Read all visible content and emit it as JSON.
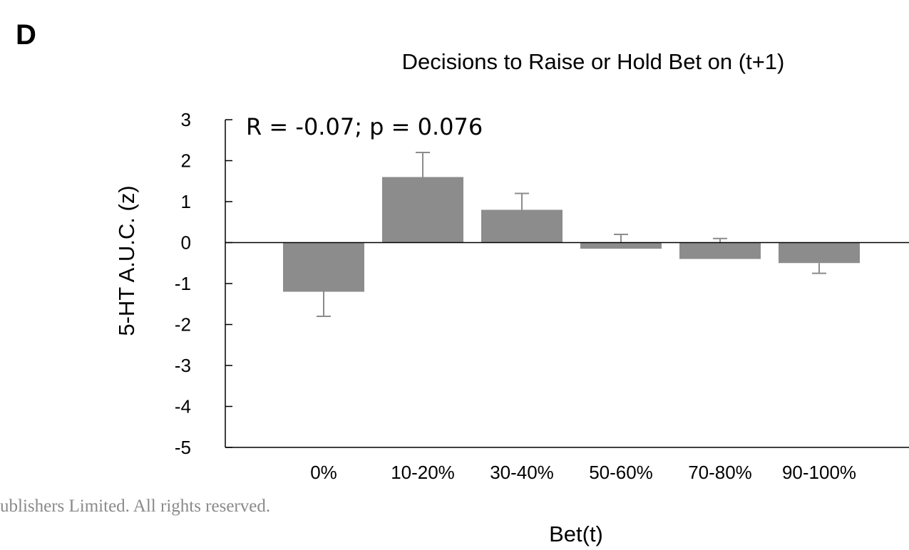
{
  "panel_label": "D",
  "copyright": "ublishers Limited. All rights reserved.",
  "colors": {
    "bar": "#8c8c8c",
    "axis": "#000000",
    "error_bar": "#8c8c8c",
    "copyright": "#8a8a8a"
  },
  "chart_data": {
    "type": "bar",
    "title": "Decisions to Raise or Hold Bet on (t+1)",
    "annotation": "R = -0.07; p = 0.076",
    "xlabel": "Bet(t)",
    "ylabel": "5-HT  A.U.C. (z)",
    "categories": [
      "0%",
      "10-20%",
      "30-40%",
      "50-60%",
      "70-80%",
      "90-100%"
    ],
    "values": [
      -1.2,
      1.6,
      0.8,
      -0.15,
      -0.4,
      -0.5
    ],
    "error_extent": [
      -1.8,
      2.2,
      1.2,
      0.2,
      0.1,
      -0.75
    ],
    "ylim": [
      -5,
      3
    ],
    "yticks": [
      3,
      2,
      1,
      0,
      -1,
      -2,
      -3,
      -4,
      -5
    ],
    "ytick_labels": [
      "3",
      "2",
      "1",
      "0",
      "-1",
      "-2",
      "-3",
      "-4",
      "-5"
    ],
    "grid": false,
    "legend": "none"
  }
}
